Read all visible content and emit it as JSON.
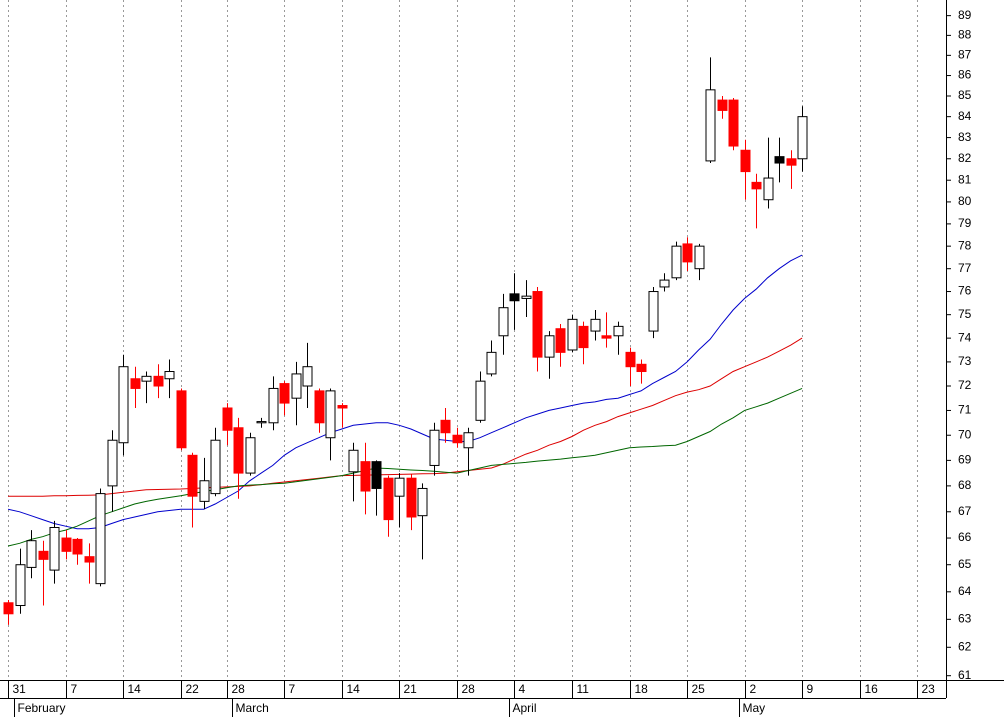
{
  "chart_data": {
    "type": "candlestick",
    "log_scale": true,
    "grid": "x",
    "x": [
      0,
      1,
      2,
      3,
      4,
      5,
      6,
      7,
      8,
      9,
      10,
      11,
      12,
      13,
      14,
      15,
      16,
      17,
      18,
      19,
      20,
      21,
      22,
      23,
      24,
      25,
      26,
      27,
      28,
      29,
      30,
      31,
      32,
      33,
      34,
      35,
      36,
      37,
      38,
      39,
      40,
      41,
      42,
      43,
      44,
      45,
      46,
      47,
      48,
      49,
      50,
      51,
      52,
      53,
      54,
      55,
      56,
      57,
      58,
      59,
      60,
      61,
      62,
      63,
      64,
      65,
      66,
      67,
      68,
      69
    ],
    "open": [
      63.6,
      63.5,
      64.9,
      65.5,
      64.8,
      66.0,
      65.95,
      65.3,
      64.3,
      68.0,
      69.7,
      72.3,
      72.2,
      72.4,
      72.3,
      71.8,
      69.2,
      67.4,
      67.7,
      71.1,
      70.3,
      68.5,
      70.5,
      70.5,
      72.1,
      71.5,
      72.0,
      71.8,
      69.9,
      71.2,
      68.55,
      68.95,
      68.95,
      68.3,
      67.6,
      68.3,
      66.85,
      68.8,
      70.6,
      70.0,
      69.5,
      70.6,
      72.5,
      74.1,
      75.9,
      75.7,
      76.0,
      73.2,
      74.4,
      73.5,
      74.5,
      74.3,
      74.1,
      74.1,
      73.4,
      72.9,
      74.3,
      76.2,
      76.6,
      78.1,
      77.0,
      81.9,
      84.8,
      84.8,
      82.4,
      80.9,
      80.1,
      82.1,
      82.0,
      82.0
    ],
    "high": [
      63.7,
      65.6,
      66.3,
      65.9,
      66.65,
      66.3,
      66.0,
      65.8,
      67.9,
      70.2,
      73.3,
      72.8,
      72.6,
      72.9,
      73.1,
      71.9,
      69.3,
      69.1,
      70.3,
      71.3,
      70.7,
      70.1,
      70.7,
      72.4,
      72.2,
      73.0,
      73.8,
      71.9,
      71.9,
      71.3,
      69.7,
      69.7,
      69.0,
      68.4,
      68.5,
      68.45,
      68.1,
      70.5,
      71.1,
      70.3,
      70.3,
      72.6,
      73.9,
      75.9,
      76.8,
      76.5,
      76.2,
      74.3,
      74.6,
      75.0,
      74.7,
      75.2,
      75.1,
      74.7,
      73.6,
      73.1,
      76.2,
      76.8,
      78.2,
      78.4,
      78.1,
      86.9,
      85.0,
      84.9,
      82.9,
      81.3,
      83.0,
      83.0,
      82.4,
      84.5
    ],
    "low": [
      62.8,
      63.2,
      64.5,
      63.5,
      64.3,
      65.2,
      65.0,
      64.3,
      64.2,
      67.0,
      69.2,
      71.1,
      71.3,
      71.5,
      71.5,
      69.4,
      66.4,
      67.1,
      67.6,
      69.6,
      67.5,
      68.4,
      70.3,
      70.2,
      70.8,
      70.4,
      71.1,
      70.1,
      69.0,
      70.3,
      67.4,
      66.9,
      66.85,
      66.05,
      66.4,
      66.3,
      65.2,
      68.4,
      69.7,
      69.5,
      68.4,
      70.5,
      72.4,
      73.3,
      74.35,
      74.9,
      72.6,
      72.3,
      72.8,
      73.4,
      72.9,
      73.9,
      73.6,
      73.3,
      72.0,
      72.1,
      74.0,
      76.0,
      76.5,
      76.9,
      76.5,
      81.8,
      83.9,
      82.4,
      80.1,
      78.8,
      79.7,
      80.9,
      80.6,
      81.4
    ],
    "close": [
      63.2,
      65.0,
      65.9,
      65.2,
      66.4,
      65.5,
      65.4,
      65.1,
      67.7,
      69.8,
      72.8,
      71.9,
      72.4,
      72.0,
      72.6,
      69.5,
      67.6,
      68.2,
      69.8,
      70.2,
      68.5,
      69.9,
      70.55,
      71.9,
      71.3,
      72.5,
      72.8,
      70.5,
      71.8,
      71.1,
      69.4,
      67.8,
      67.9,
      66.7,
      68.3,
      66.8,
      67.9,
      70.2,
      70.1,
      69.7,
      70.1,
      72.2,
      73.4,
      75.3,
      75.6,
      75.8,
      73.2,
      74.1,
      73.4,
      74.8,
      73.6,
      74.8,
      74.0,
      74.5,
      72.8,
      72.6,
      76.0,
      76.5,
      78.0,
      77.3,
      78.0,
      85.3,
      84.3,
      82.6,
      81.4,
      80.6,
      81.1,
      81.8,
      81.7,
      84.0
    ],
    "colors": [
      "red",
      "white",
      "white",
      "red",
      "white",
      "red",
      "red",
      "red",
      "white",
      "white",
      "white",
      "red",
      "white",
      "red",
      "white",
      "red",
      "red",
      "white",
      "white",
      "red",
      "red",
      "white",
      "white",
      "white",
      "red",
      "white",
      "white",
      "red",
      "white",
      "red",
      "white",
      "red",
      "black",
      "red",
      "white",
      "red",
      "white",
      "white",
      "red",
      "red",
      "white",
      "white",
      "white",
      "white",
      "black",
      "white",
      "red",
      "white",
      "red",
      "white",
      "red",
      "white",
      "red",
      "white",
      "red",
      "red",
      "white",
      "white",
      "white",
      "red",
      "white",
      "white",
      "red",
      "red",
      "red",
      "red",
      "white",
      "black",
      "red",
      "white"
    ],
    "lines": [
      {
        "color": "#0000cc",
        "values": [
          67.1,
          67.0,
          66.85,
          66.7,
          66.55,
          66.45,
          66.35,
          66.35,
          66.4,
          66.55,
          66.7,
          66.8,
          66.9,
          67.0,
          67.05,
          67.1,
          67.1,
          67.1,
          67.3,
          67.55,
          67.8,
          68.2,
          68.5,
          68.8,
          69.2,
          69.5,
          69.7,
          69.9,
          70.1,
          70.25,
          70.4,
          70.45,
          70.5,
          70.5,
          70.4,
          70.25,
          70.05,
          69.85,
          69.8,
          69.75,
          69.75,
          69.9,
          70.1,
          70.3,
          70.5,
          70.7,
          70.85,
          71.0,
          71.1,
          71.2,
          71.3,
          71.35,
          71.45,
          71.5,
          71.65,
          71.8,
          72.1,
          72.35,
          72.6,
          73.0,
          73.5,
          73.95,
          74.6,
          75.2,
          75.7,
          76.1,
          76.6,
          77.0,
          77.35,
          77.6
        ]
      },
      {
        "color": "#dd0000",
        "values": [
          67.6,
          67.6,
          67.6,
          67.6,
          67.62,
          67.62,
          67.63,
          67.64,
          67.65,
          67.7,
          67.75,
          67.8,
          67.85,
          67.86,
          67.87,
          67.88,
          67.9,
          67.92,
          67.94,
          67.96,
          67.98,
          68.0,
          68.05,
          68.1,
          68.15,
          68.2,
          68.25,
          68.3,
          68.35,
          68.4,
          68.41,
          68.42,
          68.43,
          68.44,
          68.45,
          68.46,
          68.47,
          68.48,
          68.5,
          68.55,
          68.6,
          68.65,
          68.7,
          68.85,
          69.05,
          69.25,
          69.4,
          69.6,
          69.75,
          69.95,
          70.2,
          70.4,
          70.55,
          70.75,
          70.9,
          71.05,
          71.2,
          71.4,
          71.6,
          71.75,
          71.85,
          72.0,
          72.3,
          72.6,
          72.8,
          73.0,
          73.2,
          73.45,
          73.7,
          74.0
        ]
      },
      {
        "color": "#006600",
        "values": [
          65.7,
          65.8,
          65.95,
          66.05,
          66.2,
          66.3,
          66.45,
          66.65,
          66.85,
          67.0,
          67.15,
          67.3,
          67.4,
          67.48,
          67.55,
          67.62,
          67.7,
          67.78,
          67.85,
          67.93,
          68.0,
          68.03,
          68.05,
          68.08,
          68.1,
          68.16,
          68.22,
          68.28,
          68.34,
          68.4,
          68.5,
          68.6,
          68.7,
          68.68,
          68.65,
          68.62,
          68.6,
          68.57,
          68.53,
          68.5,
          68.6,
          68.7,
          68.8,
          68.84,
          68.88,
          68.92,
          68.97,
          69.01,
          69.05,
          69.1,
          69.15,
          69.2,
          69.3,
          69.4,
          69.5,
          69.53,
          69.55,
          69.58,
          69.6,
          69.75,
          69.95,
          70.15,
          70.45,
          70.7,
          71.0,
          71.15,
          71.3,
          71.5,
          71.7,
          71.9
        ]
      }
    ],
    "xlim": [
      -0.7,
      81.5
    ],
    "xticks": [
      {
        "value": 0,
        "label": "31"
      },
      {
        "value": 5,
        "label": "7"
      },
      {
        "value": 10,
        "label": "14"
      },
      {
        "value": 15,
        "label": "22"
      },
      {
        "value": 19,
        "label": "28"
      },
      {
        "value": 24,
        "label": "7"
      },
      {
        "value": 29,
        "label": "14"
      },
      {
        "value": 34,
        "label": "21"
      },
      {
        "value": 39,
        "label": "28"
      },
      {
        "value": 44,
        "label": "4"
      },
      {
        "value": 49,
        "label": "11"
      },
      {
        "value": 54,
        "label": "18"
      },
      {
        "value": 59,
        "label": "25"
      },
      {
        "value": 64,
        "label": "2"
      },
      {
        "value": 69,
        "label": "9"
      },
      {
        "value": 74,
        "label": "16"
      },
      {
        "value": 79,
        "label": "23"
      }
    ],
    "month_ticks": [
      {
        "value": 0.5,
        "label": "February"
      },
      {
        "value": 19.5,
        "label": "March"
      },
      {
        "value": 43.5,
        "label": "April"
      },
      {
        "value": 63.5,
        "label": "May"
      }
    ],
    "ylim": [
      60.85,
      89.8
    ],
    "yticks": [
      61,
      62,
      63,
      64,
      65,
      66,
      67,
      68,
      69,
      70,
      71,
      72,
      73,
      74,
      75,
      76,
      77,
      78,
      79,
      80,
      81,
      82,
      83,
      84,
      85,
      86,
      87,
      88,
      89
    ]
  }
}
